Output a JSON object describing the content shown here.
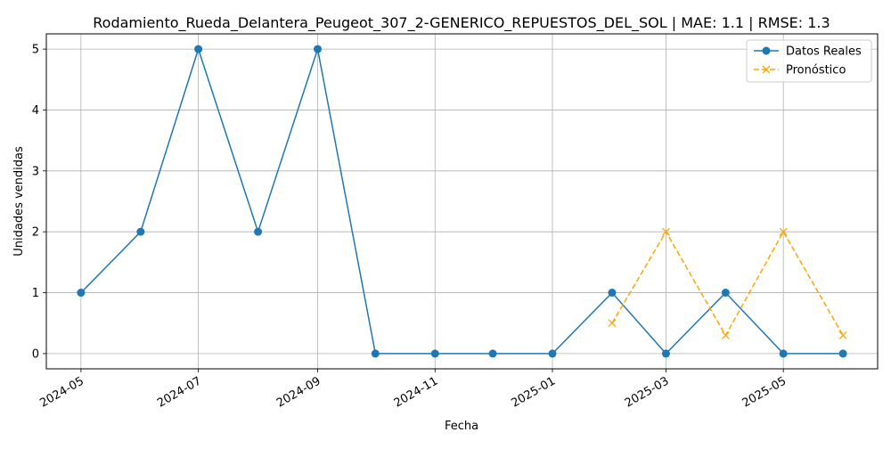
{
  "chart_data": {
    "type": "line",
    "title": "Rodamiento_Rueda_Delantera_Peugeot_307_2-GENERICO_REPUESTOS_DEL_SOL | MAE: 1.1 | RMSE: 1.3",
    "xlabel": "Fecha",
    "ylabel": "Unidades vendidas",
    "x_tick_labels": [
      "2024-05",
      "2024-07",
      "2024-09",
      "2024-11",
      "2025-01",
      "2025-03",
      "2025-05"
    ],
    "x_ticks": [
      "2024-05-01",
      "2024-07-01",
      "2024-09-01",
      "2024-11-01",
      "2025-01-01",
      "2025-03-01",
      "2025-05-01"
    ],
    "y_ticks": [
      0,
      1,
      2,
      3,
      4,
      5
    ],
    "xlim": [
      "2024-04-13",
      "2025-06-19"
    ],
    "ylim": [
      -0.25,
      5.25
    ],
    "grid": true,
    "legend_position": "top-right",
    "series": [
      {
        "name": "Datos Reales",
        "color": "#1f77b4",
        "style": "solid",
        "marker": "circle",
        "x": [
          "2024-05-01",
          "2024-06-01",
          "2024-07-01",
          "2024-08-01",
          "2024-09-01",
          "2024-10-01",
          "2024-11-01",
          "2024-12-01",
          "2025-01-01",
          "2025-02-01",
          "2025-03-01",
          "2025-04-01",
          "2025-05-01",
          "2025-06-01"
        ],
        "values": [
          1,
          2,
          5,
          2,
          5,
          0,
          0,
          0,
          0,
          1,
          0,
          1,
          0,
          0
        ]
      },
      {
        "name": "Pronóstico",
        "color": "#ffa500",
        "style": "dashed",
        "marker": "x",
        "x": [
          "2025-02-01",
          "2025-03-01",
          "2025-04-01",
          "2025-05-01",
          "2025-06-01"
        ],
        "values": [
          0.5,
          2,
          0.3,
          2,
          0.3
        ]
      }
    ]
  }
}
